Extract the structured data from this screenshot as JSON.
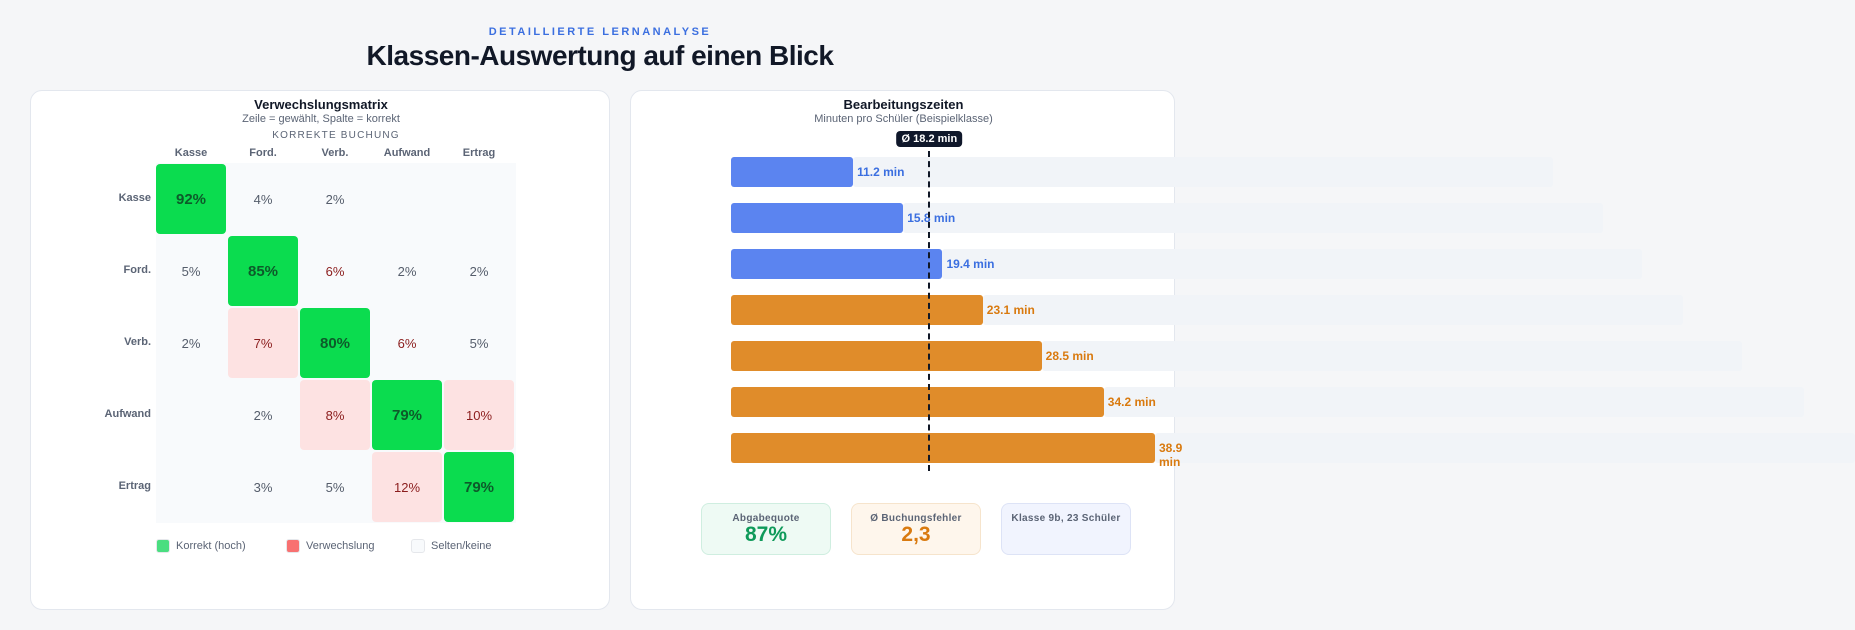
{
  "header": {
    "eyebrow": "DETAILLIERTE LERNANALYSE",
    "title": "Klassen-Auswertung auf einen Blick"
  },
  "matrix": {
    "axis_label": "KORREKTE BUCHUNG",
    "title": "Verwechslungsmatrix",
    "subtitle": "Zeile = gewählt, Spalte = korrekt",
    "columns": [
      "Kasse",
      "Ford.",
      "Verb.",
      "Aufwand",
      "Ertrag"
    ],
    "rows": [
      {
        "label": "Kasse",
        "values": [
          "92%",
          "4%",
          "2%",
          "",
          ""
        ],
        "confusion": [
          false,
          false,
          false,
          false,
          false
        ]
      },
      {
        "label": "Ford.",
        "values": [
          "5%",
          "85%",
          "6%",
          "2%",
          "2%"
        ],
        "confusion": [
          false,
          false,
          false,
          false,
          false
        ]
      },
      {
        "label": "Verb.",
        "values": [
          "2%",
          "7%",
          "80%",
          "6%",
          "5%"
        ],
        "confusion": [
          false,
          true,
          false,
          false,
          false
        ]
      },
      {
        "label": "Aufwand",
        "values": [
          "",
          "2%",
          "8%",
          "79%",
          "10%"
        ],
        "confusion": [
          false,
          false,
          true,
          false,
          true
        ]
      },
      {
        "label": "Ertrag",
        "values": [
          "",
          "3%",
          "5%",
          "12%",
          "79%"
        ],
        "confusion": [
          false,
          false,
          false,
          true,
          false
        ]
      }
    ],
    "legend": [
      {
        "label": "Korrekt (hoch)",
        "color": "#4ade80"
      },
      {
        "label": "Verwechslung",
        "color": "#f87171"
      },
      {
        "label": "Selten/keine",
        "color": "#f8fafc"
      }
    ]
  },
  "times": {
    "title": "Bearbeitungszeiten",
    "subtitle": "Minuten pro Schüler (Beispielklasse)",
    "average": 18.2,
    "average_label": "Ø 18.2 min",
    "unit": "min",
    "values": [
      11.2,
      15.8,
      19.4,
      23.1,
      28.5,
      34.2,
      38.9
    ],
    "labels": [
      "11.2 min",
      "15.8 min",
      "19.4 min",
      "23.1 min",
      "28.5 min",
      "34.2 min",
      "38.9 min"
    ],
    "colors": [
      "#5b84f0",
      "#5b84f0",
      "#5b84f0",
      "#e08c2a",
      "#e08c2a",
      "#e08c2a",
      "#e08c2a"
    ],
    "label_colors": [
      "#3b6fe0",
      "#3b6fe0",
      "#3b6fe0",
      "#d97a0f",
      "#d97a0f",
      "#d97a0f",
      "#d97a0f"
    ]
  },
  "stats": [
    {
      "label": "Abgabequote",
      "value": "87%",
      "color": "#0f9a5a",
      "bg": "#eefaf4",
      "border": "#cfeee0"
    },
    {
      "label": "Ø Buchungsfehler",
      "value": "2,3",
      "color": "#d97a0f",
      "bg": "#fef6ec",
      "border": "#f6e4cc"
    },
    {
      "label": "Klasse 9b, 23 Schüler",
      "value": "",
      "color": "#5b6475",
      "bg": "#f1f4fe",
      "border": "#dde3f6"
    }
  ]
}
